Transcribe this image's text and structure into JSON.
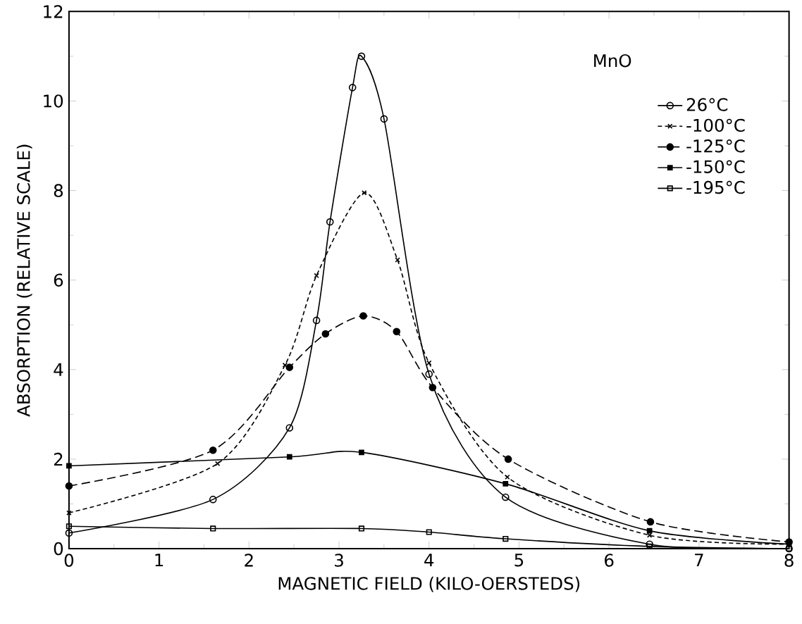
{
  "chart_data": {
    "type": "line",
    "xlabel": "MAGNETIC FIELD (KILO-OERSTEDS)",
    "ylabel": "ABSORPTION (RELATIVE SCALE)",
    "annotations": [
      "MnO"
    ],
    "xlim": [
      0,
      8
    ],
    "ylim": [
      0,
      12
    ],
    "xticks": [
      0,
      1,
      2,
      3,
      4,
      5,
      6,
      7,
      8
    ],
    "yticks": [
      0,
      2,
      4,
      6,
      8,
      10,
      12
    ],
    "grid": false,
    "legend": "top right",
    "series": [
      {
        "name": "26°C",
        "color": "#000000",
        "marker": "circle",
        "line_style": "solid",
        "x": [
          0,
          1.6,
          2.45,
          2.75,
          2.9,
          3.15,
          3.25,
          3.5,
          4.0,
          4.85,
          6.45,
          8
        ],
        "values": [
          0.35,
          1.1,
          2.7,
          5.1,
          7.3,
          10.3,
          11.0,
          9.6,
          3.9,
          1.15,
          0.1,
          0.0
        ]
      },
      {
        "name": "-100°C",
        "color": "#000000",
        "marker": "cross",
        "line_style": "dotted",
        "x": [
          0,
          1.65,
          2.4,
          2.75,
          3.28,
          3.65,
          4.0,
          4.87,
          6.45,
          8
        ],
        "values": [
          0.8,
          1.9,
          4.1,
          6.1,
          7.95,
          6.45,
          4.15,
          1.6,
          0.3,
          0.1
        ]
      },
      {
        "name": "-125°C",
        "color": "#000000",
        "marker": "circle_filled",
        "line_style": "dashed",
        "x": [
          0,
          1.6,
          2.45,
          2.85,
          3.27,
          3.64,
          4.04,
          4.88,
          6.46,
          8
        ],
        "values": [
          1.4,
          2.2,
          4.05,
          4.8,
          5.2,
          4.85,
          3.6,
          2.0,
          0.6,
          0.15
        ]
      },
      {
        "name": "-150°C",
        "color": "#000000",
        "marker": "square_filled",
        "line_style": "solid",
        "x": [
          0,
          2.45,
          3.25,
          4.85,
          6.45,
          8
        ],
        "values": [
          1.85,
          2.05,
          2.15,
          1.45,
          0.4,
          0.1
        ]
      },
      {
        "name": "-195°C",
        "color": "#000000",
        "marker": "square",
        "line_style": "solid",
        "x": [
          0,
          1.6,
          3.25,
          4.0,
          4.85,
          6.45,
          8
        ],
        "values": [
          0.5,
          0.45,
          0.45,
          0.37,
          0.22,
          0.05,
          0.0
        ]
      }
    ]
  }
}
